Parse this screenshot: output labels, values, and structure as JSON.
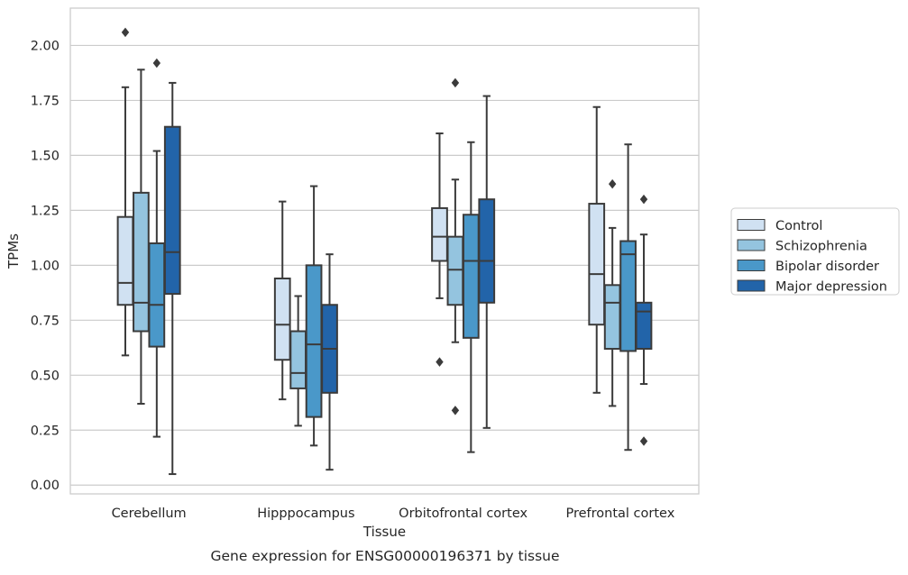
{
  "chart_data": {
    "type": "box",
    "caption": "Gene expression for ENSG00000196371 by tissue",
    "xlabel": "Tissue",
    "ylabel": "TPMs",
    "ylim": [
      -0.04,
      2.17
    ],
    "yticks": [
      0.0,
      0.25,
      0.5,
      0.75,
      1.0,
      1.25,
      1.5,
      1.75,
      2.0
    ],
    "ytick_labels": [
      "0.00",
      "0.25",
      "0.50",
      "0.75",
      "1.00",
      "1.25",
      "1.50",
      "1.75",
      "2.00"
    ],
    "grid": true,
    "legend_position": "outside-right",
    "categories": [
      "Cerebellum",
      "Hipppocampus",
      "Orbitofrontal cortex",
      "Prefrontal cortex"
    ],
    "series": [
      {
        "name": "Control",
        "color": "#d0e1f2",
        "boxes": [
          {
            "whislo": 0.59,
            "q1": 0.82,
            "med": 0.92,
            "q3": 1.22,
            "whishi": 1.81,
            "fliers": [
              2.06
            ]
          },
          {
            "whislo": 0.39,
            "q1": 0.57,
            "med": 0.73,
            "q3": 0.94,
            "whishi": 1.29,
            "fliers": []
          },
          {
            "whislo": 0.85,
            "q1": 1.02,
            "med": 1.13,
            "q3": 1.26,
            "whishi": 1.6,
            "fliers": [
              0.56
            ]
          },
          {
            "whislo": 0.42,
            "q1": 0.73,
            "med": 0.96,
            "q3": 1.28,
            "whishi": 1.72,
            "fliers": []
          }
        ]
      },
      {
        "name": "Schizophrenia",
        "color": "#94c4df",
        "boxes": [
          {
            "whislo": 0.37,
            "q1": 0.7,
            "med": 0.83,
            "q3": 1.33,
            "whishi": 1.89,
            "fliers": []
          },
          {
            "whislo": 0.27,
            "q1": 0.44,
            "med": 0.51,
            "q3": 0.7,
            "whishi": 0.86,
            "fliers": []
          },
          {
            "whislo": 0.65,
            "q1": 0.82,
            "med": 0.98,
            "q3": 1.13,
            "whishi": 1.39,
            "fliers": [
              1.83,
              0.34
            ]
          },
          {
            "whislo": 0.36,
            "q1": 0.62,
            "med": 0.83,
            "q3": 0.91,
            "whishi": 1.17,
            "fliers": [
              1.37
            ]
          }
        ]
      },
      {
        "name": "Bipolar disorder",
        "color": "#4a98c9",
        "boxes": [
          {
            "whislo": 0.22,
            "q1": 0.63,
            "med": 0.82,
            "q3": 1.1,
            "whishi": 1.52,
            "fliers": [
              1.92
            ]
          },
          {
            "whislo": 0.18,
            "q1": 0.31,
            "med": 0.64,
            "q3": 1.0,
            "whishi": 1.36,
            "fliers": []
          },
          {
            "whislo": 0.15,
            "q1": 0.67,
            "med": 1.02,
            "q3": 1.23,
            "whishi": 1.56,
            "fliers": []
          },
          {
            "whislo": 0.16,
            "q1": 0.61,
            "med": 1.05,
            "q3": 1.11,
            "whishi": 1.55,
            "fliers": []
          }
        ]
      },
      {
        "name": "Major depression",
        "color": "#2264a9",
        "boxes": [
          {
            "whislo": 0.05,
            "q1": 0.87,
            "med": 1.06,
            "q3": 1.63,
            "whishi": 1.83,
            "fliers": []
          },
          {
            "whislo": 0.07,
            "q1": 0.42,
            "med": 0.62,
            "q3": 0.82,
            "whishi": 1.05,
            "fliers": []
          },
          {
            "whislo": 0.26,
            "q1": 0.83,
            "med": 1.02,
            "q3": 1.3,
            "whishi": 1.77,
            "fliers": []
          },
          {
            "whislo": 0.46,
            "q1": 0.62,
            "med": 0.79,
            "q3": 0.83,
            "whishi": 1.14,
            "fliers": [
              1.3,
              0.2
            ]
          }
        ]
      }
    ]
  }
}
